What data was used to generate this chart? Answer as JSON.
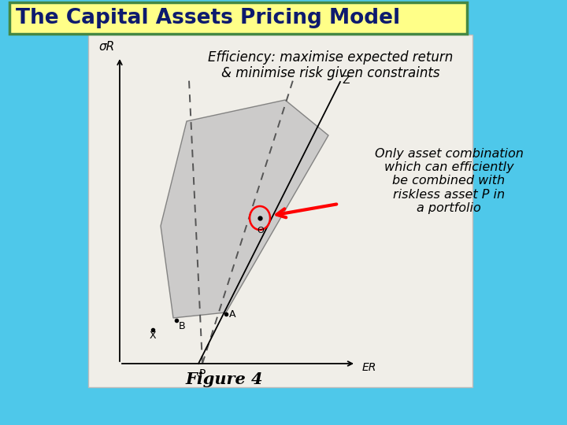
{
  "title": "The Capital Assets Pricing Model",
  "title_color": "#0D1A6E",
  "title_bg": "#FFFF88",
  "title_border": "#448844",
  "bg_color": "#4EC8EA",
  "white_box_color": "#F0EEE8",
  "subtitle": "Efficiency: maximise expected return\n& minimise risk given constraints",
  "annotation": "Only asset combination\nwhich can efficiently\nbe combined with\nriskless asset P in\na portfolio",
  "figure_label": "Figure 4",
  "sigma_label": "σR",
  "er_label": "ER",
  "z_label": "Z",
  "p_label": "P",
  "x_label": "X",
  "b_label": "B",
  "a_label": "A",
  "theta_label": "Θ"
}
